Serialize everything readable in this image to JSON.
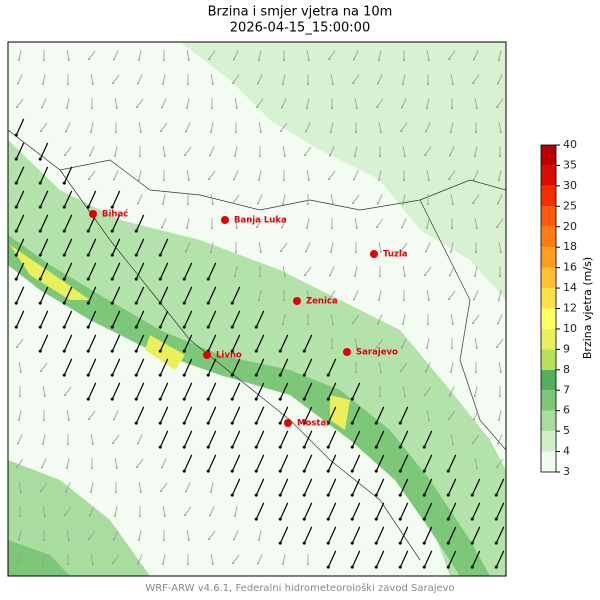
{
  "title": "Brzina i smjer vjetra na 10m",
  "subtitle": "2026-04-15_15:00:00",
  "cities": [
    "Bihać",
    "Banja Luka",
    "Tuzla",
    "Zenica",
    "Sarajevo",
    "Livno",
    "Mostar"
  ],
  "colorbar": {
    "label": "Brzina vjetra (m/s)",
    "levels": [
      3,
      4,
      5,
      6,
      7,
      8,
      9,
      10,
      12,
      14,
      16,
      18,
      20,
      25,
      30,
      35,
      40
    ],
    "colors": [
      "#f2fbf0",
      "#d2efcb",
      "#a9dd9f",
      "#7cc878",
      "#52b05a",
      "#b8e05a",
      "#e9f05c",
      "#ffff66",
      "#ffe04a",
      "#ffc034",
      "#ff9d22",
      "#ff7d14",
      "#ff5a0a",
      "#f52e02",
      "#d80f00",
      "#b80000"
    ]
  },
  "footer": "WRF-ARW v4.6.1, Federalni hidrometeorološki zavod Sarajevo"
}
